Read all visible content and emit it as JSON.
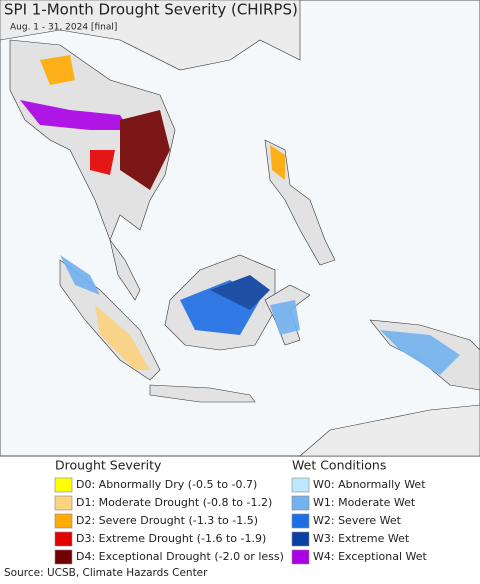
{
  "header": {
    "title": "SPI 1-Month Drought Severity (CHIRPS)",
    "subtitle": "Aug. 1 - 31, 2024 [final]"
  },
  "legend": {
    "drought": {
      "title": "Drought Severity",
      "items": [
        {
          "label": "D0: Abnormally Dry (-0.5 to -0.7)",
          "color": "#ffff00"
        },
        {
          "label": "D1: Moderate Drought (-0.8 to -1.2)",
          "color": "#fcd37f"
        },
        {
          "label": "D2: Severe Drought (-1.3 to -1.5)",
          "color": "#ffaa00"
        },
        {
          "label": "D3: Extreme Drought (-1.6 to -1.9)",
          "color": "#e60000"
        },
        {
          "label": "D4: Exceptional Drought (-2.0 or less)",
          "color": "#730000"
        }
      ]
    },
    "wet": {
      "title": "Wet Conditions",
      "items": [
        {
          "label": "W0: Abnormally Wet",
          "color": "#bee8ff"
        },
        {
          "label": "W1: Moderate Wet",
          "color": "#73b2f0"
        },
        {
          "label": "W2: Severe Wet",
          "color": "#1e6ee6"
        },
        {
          "label": "W3: Extreme Wet",
          "color": "#0a41a0"
        },
        {
          "label": "W4: Exceptional Wet",
          "color": "#aa00e6"
        }
      ]
    }
  },
  "footer": {
    "source": "Source: UCSB, Climate Hazards Center"
  }
}
